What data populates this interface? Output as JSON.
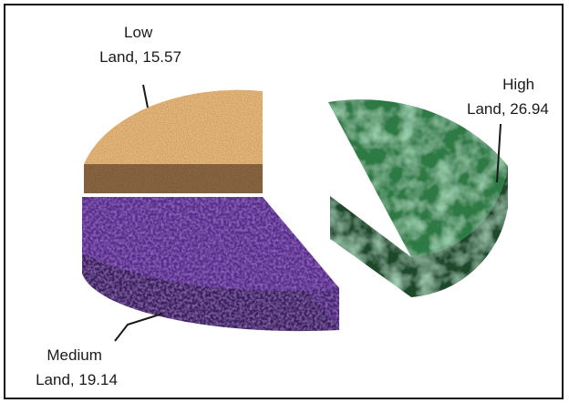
{
  "chart_data": {
    "type": "pie",
    "title": "",
    "slices": [
      {
        "label": "High Land",
        "value": 26.94,
        "color": "#2e7a45",
        "side_color": "#1f4a2c"
      },
      {
        "label": "Medium Land",
        "value": 19.14,
        "color": "#5a2a8e",
        "side_color": "#3d1b61"
      },
      {
        "label": "Low Land",
        "value": 15.57,
        "color": "#e8b779",
        "side_color": "#8a6642"
      }
    ],
    "data_labels": [
      {
        "line1": "High",
        "line2": "Land, 26.94"
      },
      {
        "line1": "Medium",
        "line2": "Land, 19.14"
      },
      {
        "line1": "Low",
        "line2": "Land, 15.57"
      }
    ],
    "legend": "none",
    "style": "3d-exploded"
  }
}
